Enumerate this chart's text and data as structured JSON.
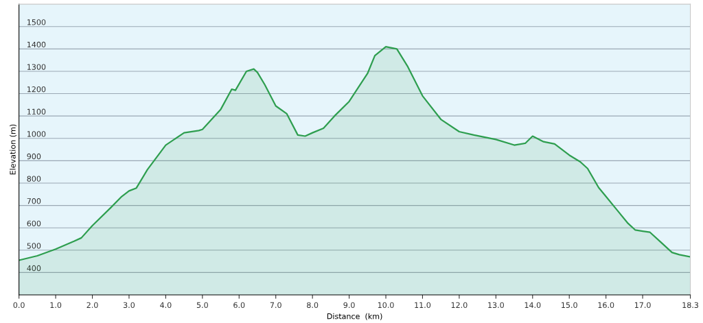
{
  "chart_data": {
    "type": "area",
    "xlabel": "Distance  (km)",
    "ylabel": "Elevation (m)",
    "x": [
      0,
      0.5,
      1.0,
      1.5,
      1.7,
      2.0,
      2.5,
      2.8,
      3.0,
      3.2,
      3.5,
      4.0,
      4.5,
      4.9,
      5.0,
      5.5,
      5.8,
      5.9,
      6.2,
      6.4,
      6.5,
      6.7,
      7.0,
      7.3,
      7.6,
      7.8,
      8.0,
      8.3,
      8.6,
      9.0,
      9.5,
      9.7,
      10.0,
      10.3,
      10.6,
      11.0,
      11.5,
      12.0,
      12.4,
      13.0,
      13.5,
      13.8,
      14.0,
      14.3,
      14.6,
      15.0,
      15.3,
      15.5,
      15.8,
      16.0,
      16.3,
      16.6,
      16.8,
      17.0,
      17.2,
      17.5,
      17.8,
      18.0,
      18.3
    ],
    "series": [
      {
        "color": "#2e9e4f",
        "values": [
          455,
          475,
          505,
          540,
          555,
          610,
          690,
          740,
          765,
          778,
          860,
          970,
          1025,
          1035,
          1040,
          1130,
          1220,
          1215,
          1300,
          1310,
          1295,
          1240,
          1145,
          1110,
          1015,
          1010,
          1025,
          1045,
          1100,
          1165,
          1290,
          1370,
          1410,
          1400,
          1320,
          1190,
          1085,
          1030,
          1015,
          995,
          970,
          978,
          1010,
          985,
          975,
          925,
          895,
          865,
          780,
          740,
          680,
          620,
          590,
          585,
          580,
          535,
          490,
          480,
          470
        ]
      }
    ],
    "xlim": [
      0,
      18.3
    ],
    "ylim": [
      300,
      1600
    ],
    "xticks": [
      {
        "value": 0,
        "label": "0.0"
      },
      {
        "value": 1,
        "label": "1.0"
      },
      {
        "value": 2,
        "label": "2.0"
      },
      {
        "value": 3,
        "label": "3.0"
      },
      {
        "value": 4,
        "label": "4.0"
      },
      {
        "value": 5,
        "label": "5.0"
      },
      {
        "value": 6,
        "label": "6.0"
      },
      {
        "value": 7,
        "label": "7.0"
      },
      {
        "value": 8,
        "label": "8.0"
      },
      {
        "value": 9,
        "label": "9.0"
      },
      {
        "value": 10,
        "label": "10.0"
      },
      {
        "value": 11,
        "label": "11.0"
      },
      {
        "value": 12,
        "label": "12.0"
      },
      {
        "value": 13,
        "label": "13.0"
      },
      {
        "value": 14,
        "label": "14.0"
      },
      {
        "value": 15,
        "label": "15.0"
      },
      {
        "value": 16,
        "label": "16.0"
      },
      {
        "value": 17,
        "label": "17.0"
      },
      {
        "value": 18.3,
        "label": "18.3"
      }
    ],
    "yticks": [
      400,
      500,
      600,
      700,
      800,
      900,
      1000,
      1100,
      1200,
      1300,
      1400,
      1500
    ],
    "grid": "y"
  }
}
